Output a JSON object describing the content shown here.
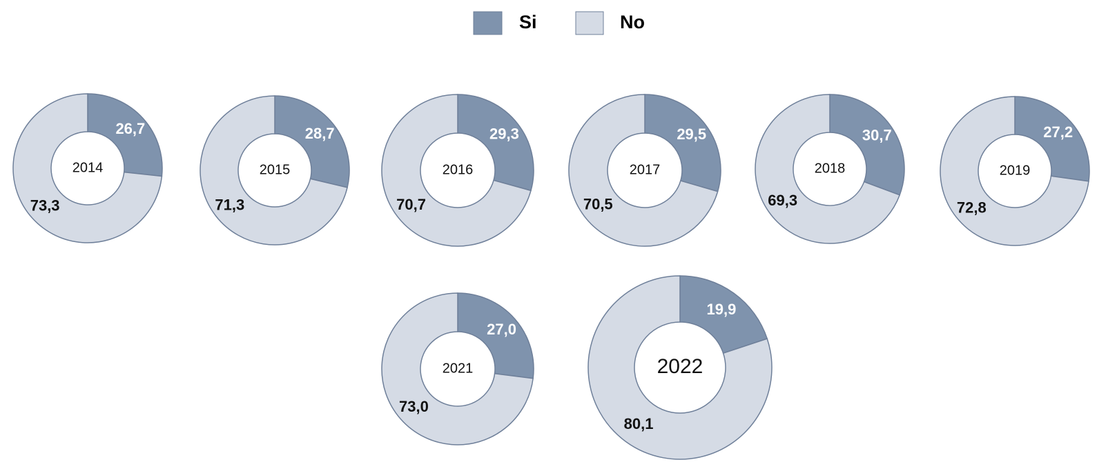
{
  "chart_data": [
    {
      "type": "donut",
      "title": "2014",
      "categories": [
        "Si",
        "No"
      ],
      "values": [
        26.7,
        73.3
      ],
      "value_labels": [
        "26,7",
        "73,3"
      ],
      "colors": [
        "#7f93ad",
        "#d5dbe5"
      ]
    },
    {
      "type": "donut",
      "title": "2015",
      "categories": [
        "Si",
        "No"
      ],
      "values": [
        28.7,
        71.3
      ],
      "value_labels": [
        "28,7",
        "71,3"
      ],
      "colors": [
        "#7f93ad",
        "#d5dbe5"
      ]
    },
    {
      "type": "donut",
      "title": "2016",
      "categories": [
        "Si",
        "No"
      ],
      "values": [
        29.3,
        70.7
      ],
      "value_labels": [
        "29,3",
        "70,7"
      ],
      "colors": [
        "#7f93ad",
        "#d5dbe5"
      ]
    },
    {
      "type": "donut",
      "title": "2017",
      "categories": [
        "Si",
        "No"
      ],
      "values": [
        29.5,
        70.5
      ],
      "value_labels": [
        "29,5",
        "70,5"
      ],
      "colors": [
        "#7f93ad",
        "#d5dbe5"
      ]
    },
    {
      "type": "donut",
      "title": "2018",
      "categories": [
        "Si",
        "No"
      ],
      "values": [
        30.7,
        69.3
      ],
      "value_labels": [
        "30,7",
        "69,3"
      ],
      "colors": [
        "#7f93ad",
        "#d5dbe5"
      ]
    },
    {
      "type": "donut",
      "title": "2019",
      "categories": [
        "Si",
        "No"
      ],
      "values": [
        27.2,
        72.8
      ],
      "value_labels": [
        "27,2",
        "72,8"
      ],
      "colors": [
        "#7f93ad",
        "#d5dbe5"
      ]
    },
    {
      "type": "donut",
      "title": "2021",
      "categories": [
        "Si",
        "No"
      ],
      "values": [
        27.0,
        73.0
      ],
      "value_labels": [
        "27,0",
        "73,0"
      ],
      "colors": [
        "#7f93ad",
        "#d5dbe5"
      ]
    },
    {
      "type": "donut",
      "title": "2022",
      "categories": [
        "Si",
        "No"
      ],
      "values": [
        19.9,
        80.1
      ],
      "value_labels": [
        "19,9",
        "80,1"
      ],
      "colors": [
        "#7f93ad",
        "#d5dbe5"
      ]
    }
  ]
}
